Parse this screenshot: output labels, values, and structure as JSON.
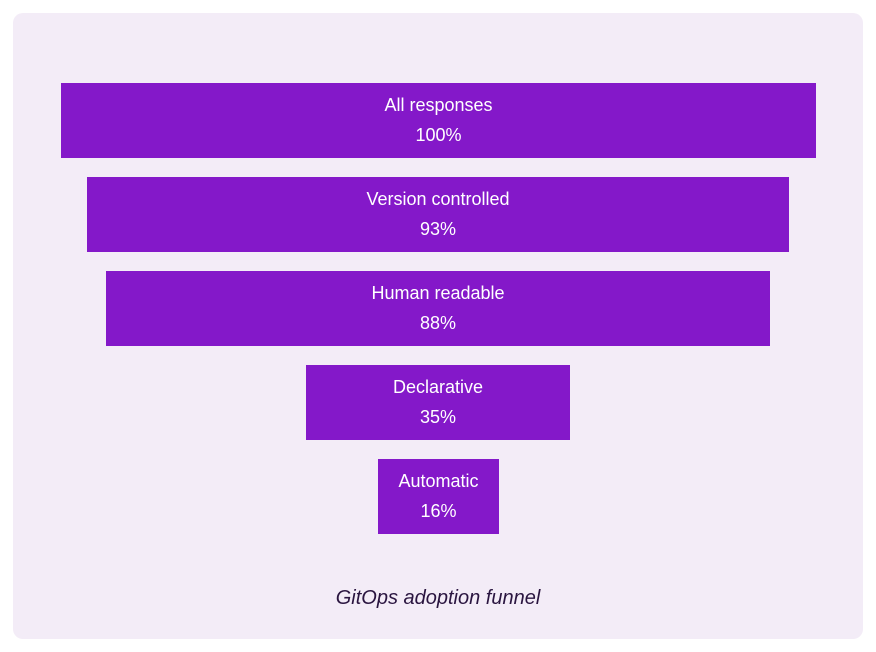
{
  "chart_data": {
    "type": "bar",
    "subtype": "funnel",
    "categories": [
      "All responses",
      "Version controlled",
      "Human readable",
      "Declarative",
      "Automatic"
    ],
    "values": [
      100,
      93,
      88,
      35,
      16
    ],
    "value_labels": [
      "100%",
      "93%",
      "88%",
      "35%",
      "16%"
    ],
    "unit": "%",
    "caption": "GitOps adoption funnel",
    "bar_color": "#8418c9",
    "background_color": "#f3ecf7",
    "text_color": "#ffffff",
    "grid": false,
    "legend": "none"
  }
}
